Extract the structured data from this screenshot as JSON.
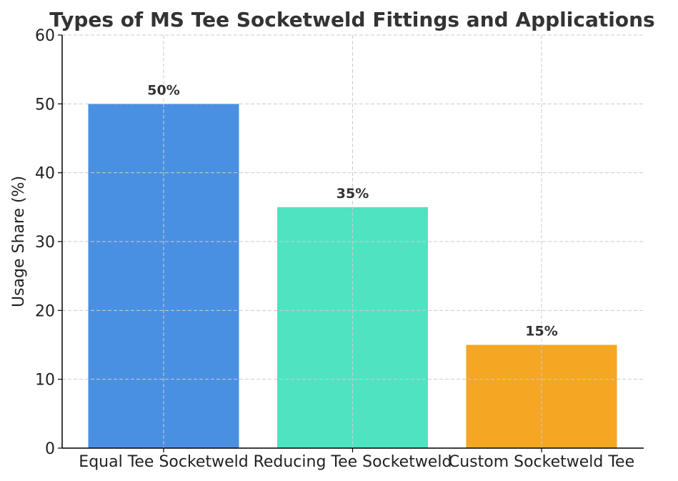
{
  "chart_data": {
    "type": "bar",
    "title": "Types of MS Tee Socketweld Fittings and Applications",
    "xlabel": "",
    "ylabel": "Usage Share (%)",
    "categories": [
      "Equal Tee Socketweld",
      "Reducing Tee Socketweld",
      "Custom Socketweld Tee"
    ],
    "values": [
      50,
      35,
      15
    ],
    "data_labels": [
      "50%",
      "35%",
      "15%"
    ],
    "colors": [
      "#4a90e2",
      "#50e3c2",
      "#f5a623"
    ],
    "ylim": [
      0,
      60
    ],
    "yticks": [
      0,
      10,
      20,
      30,
      40,
      50,
      60
    ],
    "grid": true,
    "grid_color": "#cccccc"
  }
}
